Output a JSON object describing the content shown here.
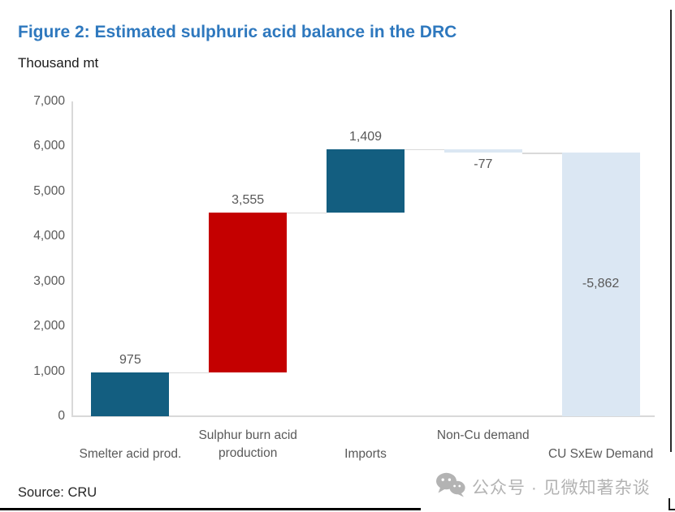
{
  "header": {
    "title": "Figure 2: Estimated sulphuric acid balance in the DRC",
    "units": "Thousand mt"
  },
  "chart_data": {
    "type": "bar",
    "subtype": "waterfall",
    "title": "Figure 2: Estimated sulphuric acid balance in the DRC",
    "ylabel": "Thousand mt",
    "xlabel": "",
    "ylim": [
      0,
      7000
    ],
    "ytick_interval": 1000,
    "ytick_labels": [
      "0",
      "1,000",
      "2,000",
      "3,000",
      "4,000",
      "5,000",
      "6,000",
      "7,000"
    ],
    "grid": false,
    "legend": false,
    "categories": [
      "Smelter acid prod.",
      "Sulphur burn acid\nproduction",
      "Imports",
      "Non-Cu demand",
      "CU SxEw Demand"
    ],
    "values": [
      975,
      3555,
      1409,
      -77,
      -5862
    ],
    "value_labels": [
      "975",
      "3,555",
      "1,409",
      "-77",
      "-5,862"
    ],
    "cumulative_levels": [
      [
        0,
        975
      ],
      [
        975,
        4530
      ],
      [
        4530,
        5939
      ],
      [
        5862,
        5939
      ],
      [
        0,
        5862
      ]
    ],
    "running_totals": [
      975,
      4530,
      5939,
      5862,
      0
    ],
    "bar_colors": [
      "#135E80",
      "#C40000",
      "#135E80",
      "#DBE7F3",
      "#DBE7F3"
    ],
    "value_label_placement": [
      "above",
      "above",
      "above",
      "below",
      "inside"
    ],
    "category_label_row": [
      2,
      1,
      2,
      1,
      2
    ]
  },
  "footer": {
    "source": "Source: CRU"
  },
  "watermark": {
    "icon": "wechat-icon",
    "text": "公众号 · 见微知著杂谈"
  },
  "colors": {
    "title_blue": "#2E78BE",
    "bar_blue": "#135E80",
    "bar_red": "#C40000",
    "bar_lightblue": "#DBE7F3",
    "axis_line": "#D9D9D9",
    "connector_line": "#D9D9D9",
    "tick_text": "#595959",
    "category_text": "#595959",
    "value_text": "#595959",
    "watermark_gray": "#B3B3B3",
    "bottom_rule": "#000000"
  }
}
